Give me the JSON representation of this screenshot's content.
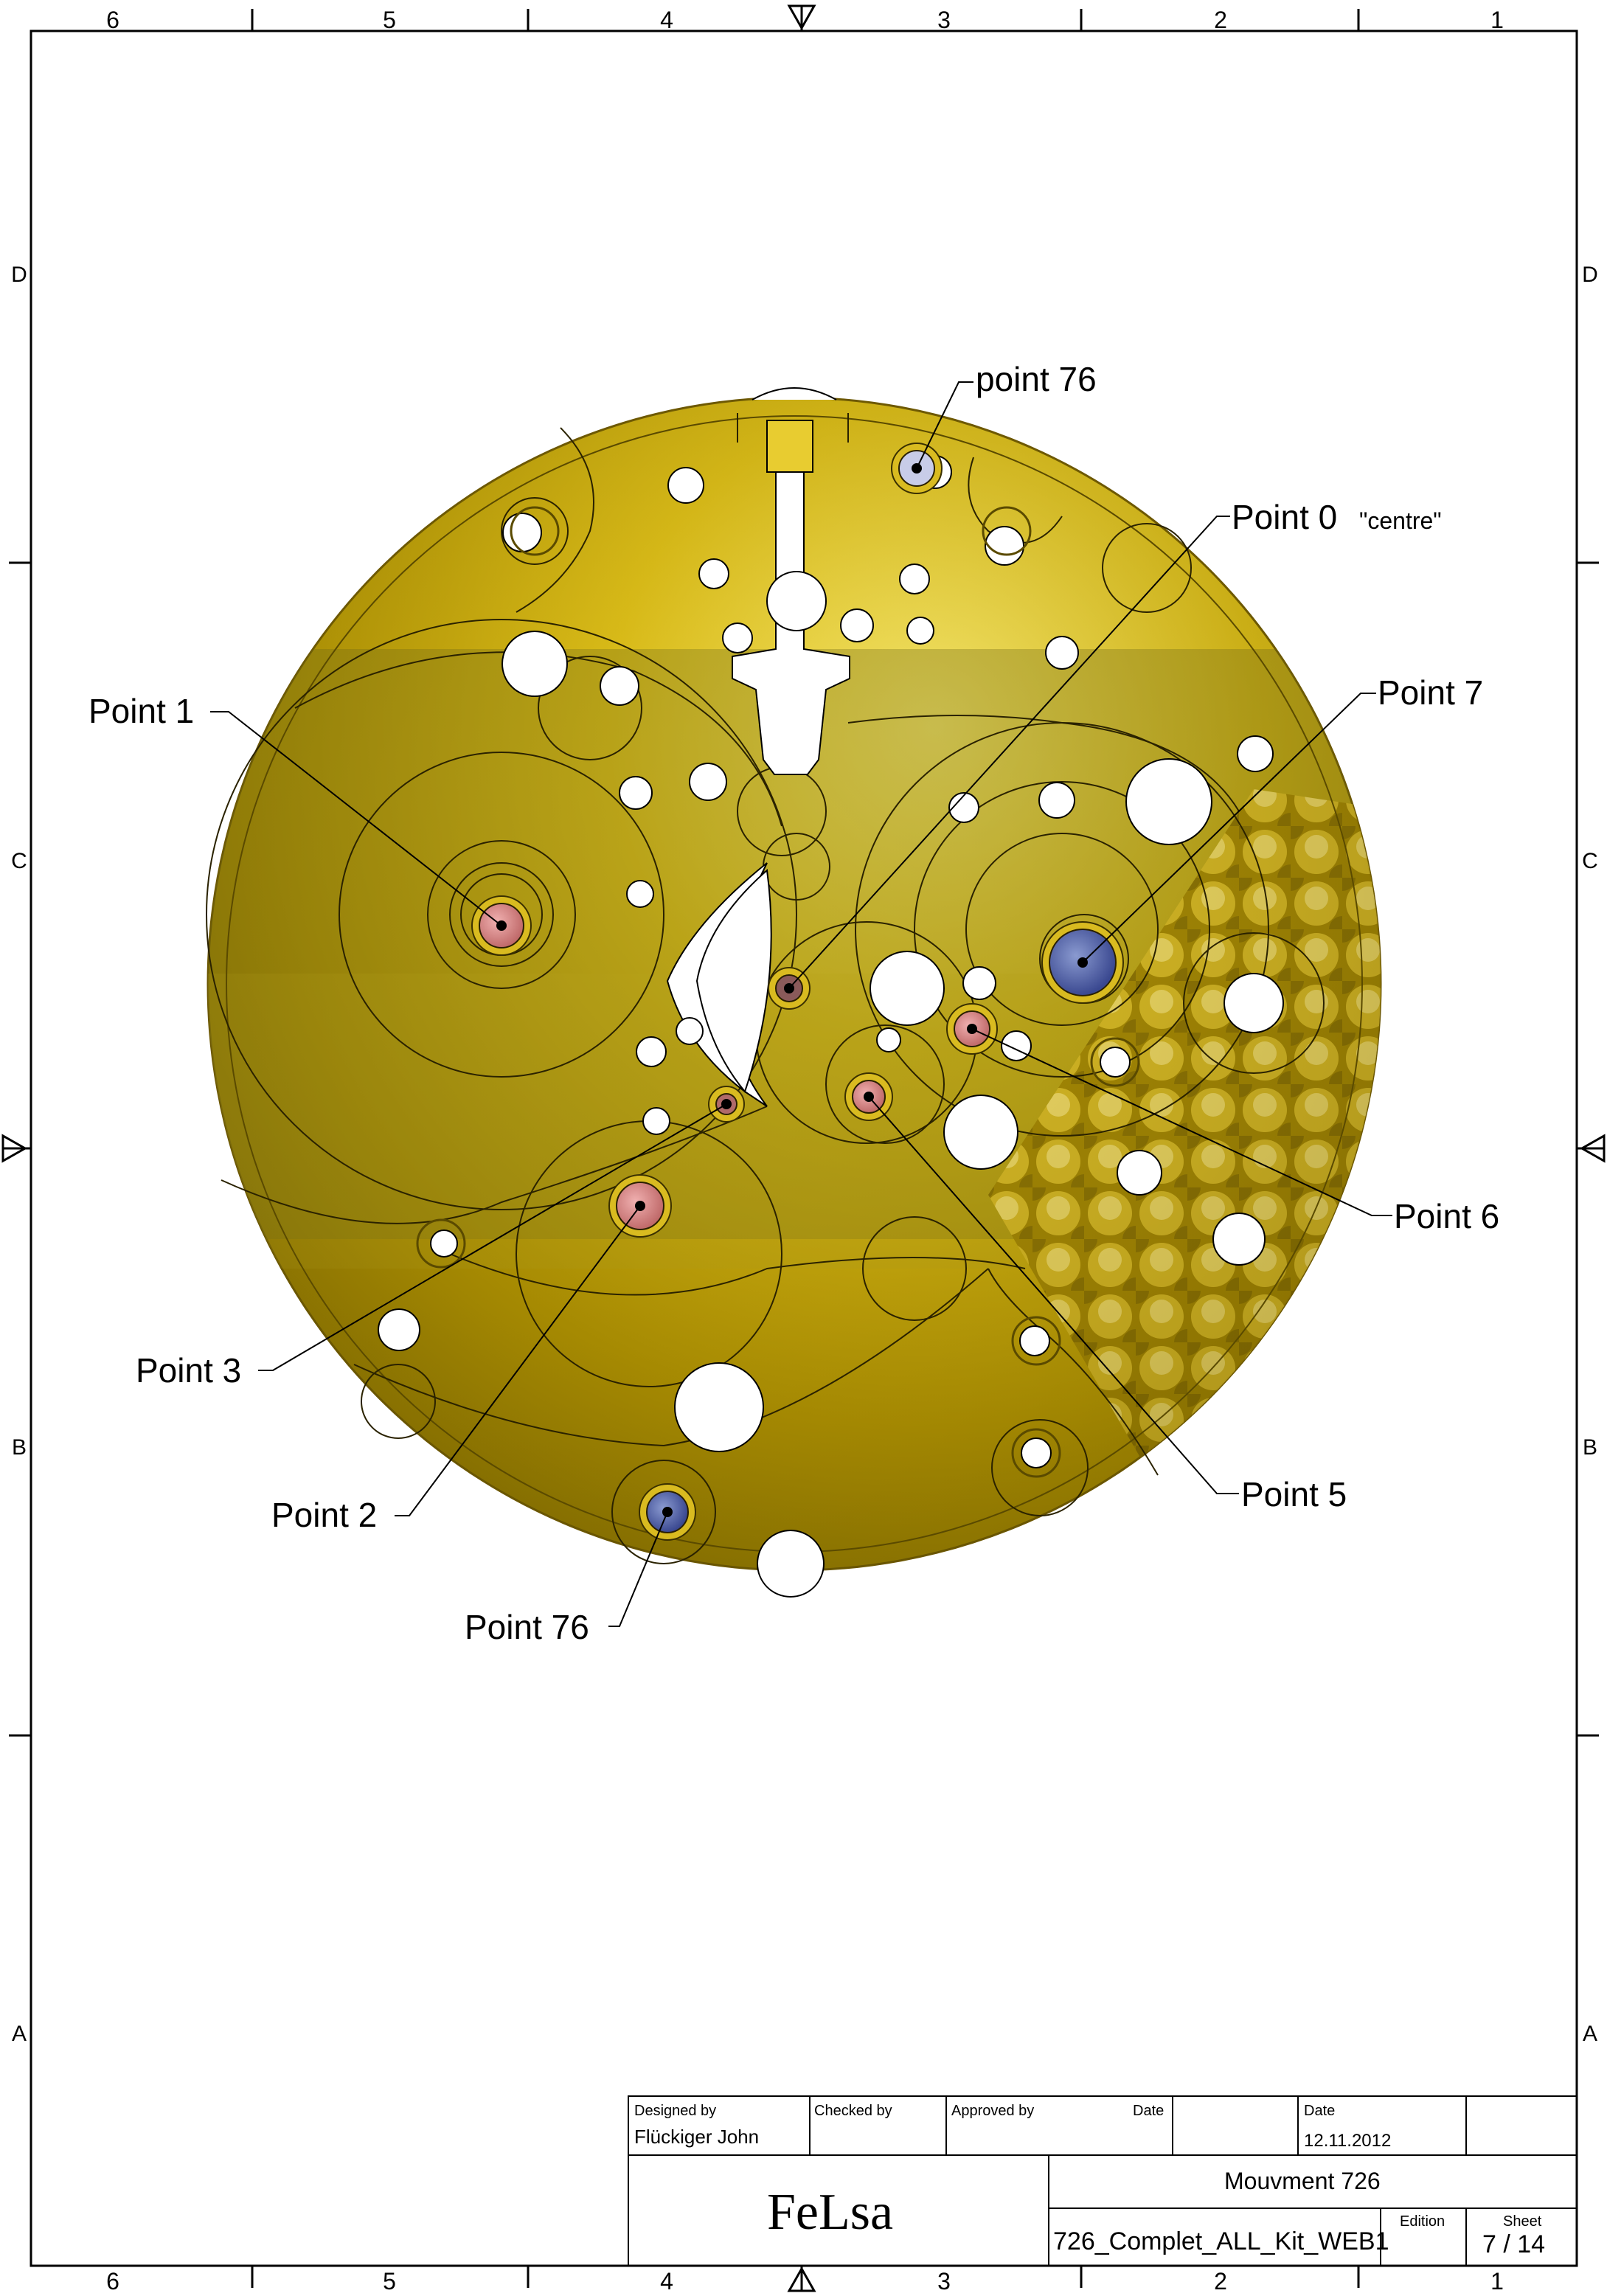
{
  "frame": {
    "columns": [
      "6",
      "5",
      "4",
      "3",
      "2",
      "1"
    ],
    "rows": [
      "D",
      "C",
      "B",
      "A"
    ]
  },
  "callouts": {
    "point76_top": "point 76",
    "point0": "Point 0",
    "point0_note": "\"centre\"",
    "point1": "Point 1",
    "point7": "Point 7",
    "point6": "Point 6",
    "point3": "Point 3",
    "point5": "Point 5",
    "point2": "Point 2",
    "point76_bottom": "Point 76"
  },
  "title_block": {
    "designed_by_label": "Designed by",
    "designed_by": "Flückiger John",
    "checked_by_label": "Checked by",
    "approved_by_label": "Approved by",
    "date_label_1": "Date",
    "date_label_2": "Date",
    "date": "12.11.2012",
    "company": "FeLsa",
    "title": "Mouvment 726",
    "file_name": "726_Complet_ALL_Kit_WEB1",
    "edition_label": "Edition",
    "sheet_label": "Sheet",
    "sheet": "7 / 14"
  },
  "colors": {
    "plate": "#d4b000",
    "plate_light": "#f2dc3a",
    "plate_dark": "#8a7000",
    "jewel_red": "#d88a8a",
    "jewel_blue": "#5a6aa8",
    "hole": "#ffffff",
    "line": "#000000"
  }
}
